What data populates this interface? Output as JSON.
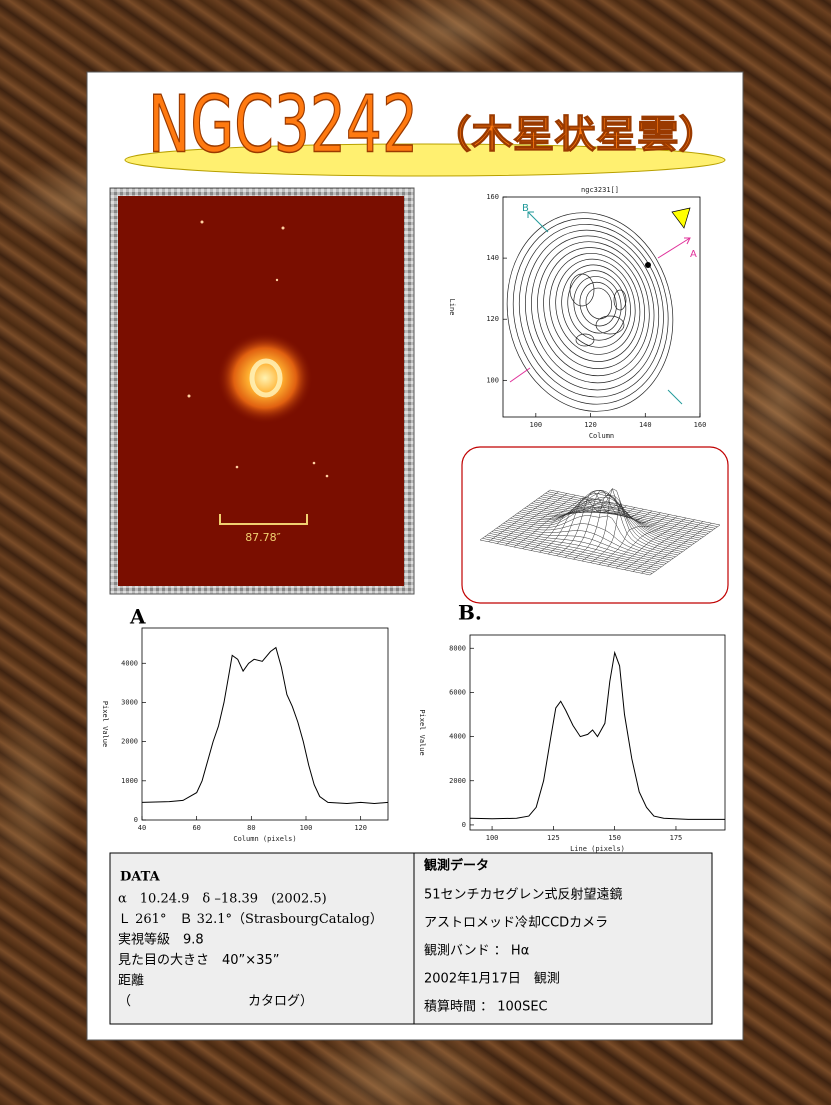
{
  "header": {
    "title": "NGC3242",
    "subtitle": "（木星状星雲）"
  },
  "image": {
    "scale_label": "87.78″"
  },
  "contour_plot": {
    "title": "ngc3231[]",
    "x_label": "Column",
    "y_label": "Line",
    "xlim": [
      88,
      160
    ],
    "ylim": [
      88,
      160
    ],
    "xticks": [
      100,
      120,
      140,
      160
    ],
    "yticks": [
      100,
      120,
      140,
      160
    ],
    "markers": [
      "A",
      "B"
    ]
  },
  "chart_data": [
    {
      "type": "line",
      "title": "A",
      "x_label": "Column (pixels)",
      "y_label": "Pixel Value",
      "color": "#000000",
      "x": [
        40,
        50,
        55,
        60,
        62,
        64,
        66,
        68,
        70,
        72,
        73,
        75,
        77,
        79,
        81,
        84,
        87,
        89,
        91,
        93,
        95,
        97,
        99,
        101,
        103,
        105,
        108,
        115,
        120,
        125,
        130
      ],
      "values": [
        450,
        470,
        500,
        700,
        1000,
        1500,
        2000,
        2400,
        3000,
        3800,
        4200,
        4100,
        3800,
        4000,
        4100,
        4050,
        4300,
        4400,
        3900,
        3200,
        2900,
        2500,
        2000,
        1400,
        900,
        600,
        450,
        420,
        450,
        420,
        450
      ],
      "xlim": [
        40,
        130
      ],
      "ylim": [
        0,
        4900
      ],
      "xticks": [
        40,
        60,
        80,
        100,
        120
      ],
      "yticks": [
        0,
        1000,
        2000,
        3000,
        4000
      ]
    },
    {
      "type": "line",
      "title": "B.",
      "x_label": "Line (pixels)",
      "y_label": "Pixel Value",
      "color": "#000000",
      "x": [
        91,
        100,
        110,
        115,
        118,
        121,
        124,
        126,
        128,
        130,
        133,
        136,
        139,
        141,
        143,
        146,
        148,
        150,
        152,
        154,
        157,
        160,
        163,
        166,
        170,
        180,
        195
      ],
      "values": [
        300,
        280,
        300,
        400,
        800,
        2000,
        4000,
        5300,
        5600,
        5200,
        4500,
        4000,
        4100,
        4300,
        4000,
        4600,
        6500,
        7800,
        7200,
        5000,
        3000,
        1500,
        800,
        400,
        300,
        250,
        250
      ],
      "xlim": [
        91,
        195
      ],
      "ylim": [
        -230,
        8600
      ],
      "xticks": [
        100,
        125,
        150,
        175
      ],
      "yticks": [
        0,
        2000,
        4000,
        6000,
        8000
      ]
    }
  ],
  "data_table": {
    "left": {
      "heading": "DATA",
      "lines": [
        "α　10.24.9　δ –18.39　(2002.5)",
        "Ｌ 261°　Ｂ 32.1°（StrasbourgCatalog）",
        "実視等級　9.8",
        "見た目の大きさ　40”×35”",
        "距離",
        "（　　　　　　　　　カタログ）"
      ]
    },
    "right": {
      "heading": "観測データ",
      "lines": [
        "51センチカセグレン式反射望遠鏡",
        "アストロメッド冷却CCDカメラ",
        "観測バンド ： Hα",
        "2002年1月17日　観測",
        "積算時間 ： 100SEC"
      ]
    }
  }
}
